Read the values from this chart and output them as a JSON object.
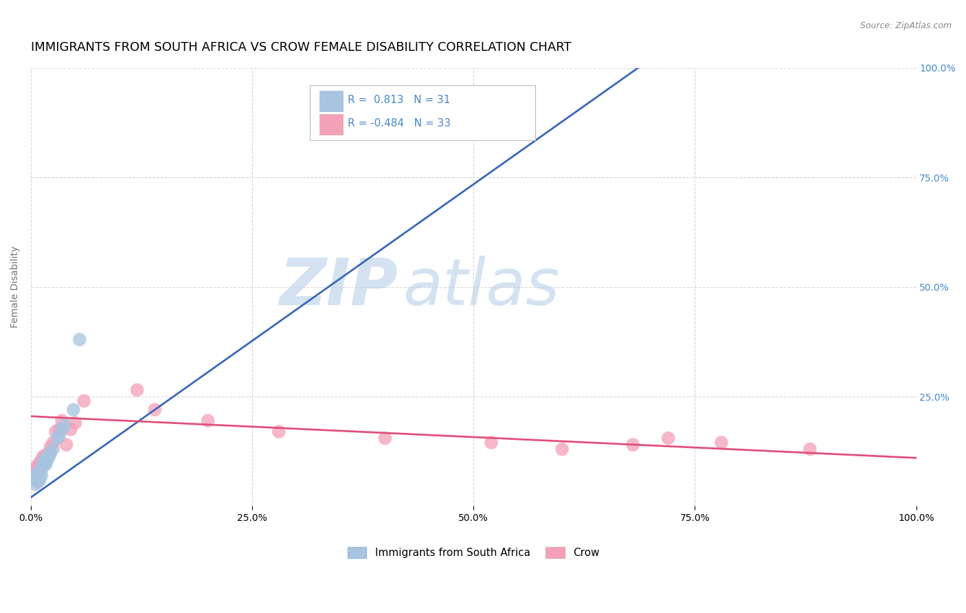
{
  "title": "IMMIGRANTS FROM SOUTH AFRICA VS CROW FEMALE DISABILITY CORRELATION CHART",
  "source": "Source: ZipAtlas.com",
  "ylabel": "Female Disability",
  "xlim": [
    0,
    1.0
  ],
  "ylim": [
    0,
    1.0
  ],
  "xtick_labels": [
    "0.0%",
    "25.0%",
    "50.0%",
    "75.0%",
    "100.0%"
  ],
  "xtick_vals": [
    0.0,
    0.25,
    0.5,
    0.75,
    1.0
  ],
  "ytick_labels": [
    "25.0%",
    "50.0%",
    "75.0%",
    "100.0%"
  ],
  "ytick_vals": [
    0.25,
    0.5,
    0.75,
    1.0
  ],
  "r_blue": 0.813,
  "n_blue": 31,
  "r_pink": -0.484,
  "n_pink": 33,
  "blue_color": "#a8c4e0",
  "pink_color": "#f4a0b8",
  "line_blue": "#3a68b8",
  "line_pink": "#e0507a",
  "legend_label_blue": "Immigrants from South Africa",
  "legend_label_pink": "Crow",
  "watermark_zip": "ZIP",
  "watermark_atlas": "atlas",
  "blue_scatter_x": [
    0.005,
    0.005,
    0.007,
    0.007,
    0.008,
    0.008,
    0.009,
    0.009,
    0.01,
    0.01,
    0.01,
    0.012,
    0.012,
    0.013,
    0.013,
    0.015,
    0.015,
    0.016,
    0.017,
    0.018,
    0.018,
    0.02,
    0.02,
    0.022,
    0.025,
    0.03,
    0.032,
    0.035,
    0.038,
    0.048,
    0.055
  ],
  "blue_scatter_y": [
    0.05,
    0.06,
    0.065,
    0.07,
    0.055,
    0.075,
    0.06,
    0.08,
    0.06,
    0.07,
    0.08,
    0.07,
    0.085,
    0.09,
    0.095,
    0.095,
    0.105,
    0.1,
    0.095,
    0.105,
    0.11,
    0.11,
    0.115,
    0.12,
    0.13,
    0.155,
    0.16,
    0.175,
    0.185,
    0.22,
    0.38
  ],
  "pink_scatter_x": [
    0.005,
    0.006,
    0.008,
    0.009,
    0.01,
    0.01,
    0.012,
    0.013,
    0.015,
    0.015,
    0.017,
    0.018,
    0.02,
    0.022,
    0.025,
    0.028,
    0.032,
    0.035,
    0.04,
    0.045,
    0.05,
    0.06,
    0.12,
    0.14,
    0.2,
    0.28,
    0.4,
    0.52,
    0.6,
    0.68,
    0.72,
    0.78,
    0.88
  ],
  "pink_scatter_y": [
    0.08,
    0.09,
    0.09,
    0.085,
    0.09,
    0.1,
    0.1,
    0.11,
    0.1,
    0.115,
    0.115,
    0.115,
    0.12,
    0.135,
    0.145,
    0.17,
    0.175,
    0.195,
    0.14,
    0.175,
    0.19,
    0.24,
    0.265,
    0.22,
    0.195,
    0.17,
    0.155,
    0.145,
    0.13,
    0.14,
    0.155,
    0.145,
    0.13
  ],
  "grid_color": "#cccccc",
  "background_color": "#ffffff",
  "title_color": "#000000",
  "axis_label_color": "#777777",
  "tick_label_color_right": "#4488cc",
  "title_fontsize": 13,
  "label_fontsize": 10,
  "tick_fontsize": 10,
  "blue_line_x": [
    0.0,
    0.7
  ],
  "blue_line_y": [
    0.02,
    1.02
  ],
  "pink_line_x": [
    0.0,
    1.0
  ],
  "pink_line_y": [
    0.205,
    0.11
  ]
}
